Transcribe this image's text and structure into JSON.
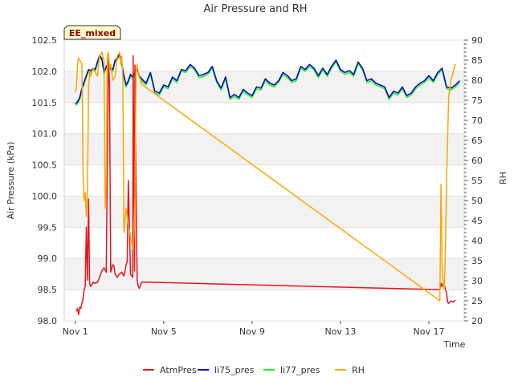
{
  "chart_data": {
    "type": "line",
    "title": "Air Pressure and RH",
    "xlabel": "Time",
    "ylabel_left": "Air Pressure (kPa)",
    "ylabel_right": "RH",
    "badge": "EE_mixed",
    "xlim": [
      0.5,
      18.6
    ],
    "ylim_left": [
      98.0,
      102.5
    ],
    "ylim_right": [
      20,
      90
    ],
    "x_ticks": [
      {
        "value": 1,
        "label": "Nov 1"
      },
      {
        "value": 5,
        "label": "Nov 5"
      },
      {
        "value": 9,
        "label": "Nov 9"
      },
      {
        "value": 13,
        "label": "Nov 13"
      },
      {
        "value": 17,
        "label": "Nov 17"
      }
    ],
    "y_left_ticks": [
      "98.0",
      "98.5",
      "99.0",
      "99.5",
      "100.0",
      "100.5",
      "101.0",
      "101.5",
      "102.0",
      "102.5"
    ],
    "y_right_ticks": [
      "20",
      "25",
      "30",
      "35",
      "40",
      "45",
      "50",
      "55",
      "60",
      "65",
      "70",
      "75",
      "80",
      "85",
      "90"
    ],
    "bands_left": [
      [
        98.5,
        99.0
      ],
      [
        99.5,
        100.0
      ],
      [
        100.5,
        101.0
      ],
      [
        101.5,
        102.0
      ]
    ],
    "legend": [
      {
        "name": "AtmPres",
        "color": "#e8161b"
      },
      {
        "name": "li75_pres",
        "color": "#0000cc"
      },
      {
        "name": "li77_pres",
        "color": "#22ee22"
      },
      {
        "name": "RH",
        "color": "#ffa500"
      }
    ],
    "series": [
      {
        "name": "li77_pres",
        "color": "#22ee22",
        "axis": "left",
        "x": [
          1.0,
          1.1,
          1.2,
          1.3,
          1.4,
          1.5,
          1.6,
          1.7,
          1.8,
          1.9,
          2.0,
          2.1,
          2.2,
          2.3,
          2.4,
          2.5,
          2.6,
          2.7,
          2.8,
          2.9,
          3.0,
          3.1,
          3.2,
          3.3,
          3.4,
          3.5,
          3.6,
          3.7,
          3.8,
          3.9,
          4.0,
          4.2,
          4.4,
          4.6,
          4.8,
          5.0,
          5.2,
          5.4,
          5.6,
          5.8,
          6.0,
          6.2,
          6.4,
          6.6,
          6.8,
          7.0,
          7.2,
          7.4,
          7.6,
          7.8,
          8.0,
          8.2,
          8.4,
          8.6,
          8.8,
          9.0,
          9.2,
          9.4,
          9.6,
          9.8,
          10.0,
          10.2,
          10.4,
          10.6,
          10.8,
          11.0,
          11.2,
          11.4,
          11.6,
          11.8,
          12.0,
          12.2,
          12.4,
          12.6,
          12.8,
          13.0,
          13.2,
          13.4,
          13.6,
          13.8,
          14.0,
          14.2,
          14.4,
          14.6,
          14.8,
          15.0,
          15.2,
          15.4,
          15.6,
          15.8,
          16.0,
          16.2,
          16.4,
          16.6,
          16.8,
          17.0,
          17.2,
          17.4,
          17.6,
          17.8,
          18.0,
          18.2,
          18.4
        ],
        "y": [
          101.45,
          101.48,
          101.55,
          101.7,
          101.8,
          101.9,
          102.0,
          101.98,
          102.02,
          102.0,
          102.12,
          102.22,
          102.18,
          101.95,
          102.05,
          102.1,
          102.02,
          102.0,
          102.15,
          102.18,
          102.25,
          102.1,
          101.9,
          101.75,
          101.82,
          101.92,
          101.88,
          101.95,
          102.02,
          101.9,
          101.85,
          101.78,
          101.95,
          101.65,
          101.62,
          101.75,
          101.72,
          101.88,
          101.82,
          102.0,
          101.98,
          102.08,
          102.02,
          101.9,
          101.92,
          101.95,
          102.05,
          101.82,
          101.7,
          101.88,
          101.55,
          101.6,
          101.55,
          101.68,
          101.62,
          101.58,
          101.72,
          101.7,
          101.85,
          101.78,
          101.75,
          101.82,
          101.95,
          101.9,
          101.82,
          101.85,
          102.05,
          102.0,
          102.08,
          102.02,
          101.9,
          102.02,
          101.92,
          102.05,
          102.15,
          102.0,
          101.95,
          101.98,
          101.92,
          102.12,
          102.02,
          101.82,
          101.85,
          101.78,
          101.75,
          101.72,
          101.55,
          101.65,
          101.62,
          101.72,
          101.58,
          101.62,
          101.72,
          101.78,
          101.82,
          101.9,
          101.82,
          101.95,
          102.02,
          101.72,
          101.7,
          101.75,
          101.82
        ]
      },
      {
        "name": "li75_pres",
        "color": "#0000cc",
        "axis": "left",
        "x": [
          1.0,
          1.1,
          1.2,
          1.3,
          1.4,
          1.5,
          1.6,
          1.7,
          1.8,
          1.9,
          2.0,
          2.1,
          2.2,
          2.3,
          2.4,
          2.5,
          2.6,
          2.7,
          2.8,
          2.9,
          3.0,
          3.1,
          3.2,
          3.3,
          3.4,
          3.5,
          3.6,
          3.7,
          3.8,
          3.9,
          4.0,
          4.2,
          4.4,
          4.6,
          4.8,
          5.0,
          5.2,
          5.4,
          5.6,
          5.8,
          6.0,
          6.2,
          6.4,
          6.6,
          6.8,
          7.0,
          7.2,
          7.4,
          7.6,
          7.8,
          8.0,
          8.2,
          8.4,
          8.6,
          8.8,
          9.0,
          9.2,
          9.4,
          9.6,
          9.8,
          10.0,
          10.2,
          10.4,
          10.6,
          10.8,
          11.0,
          11.2,
          11.4,
          11.6,
          11.8,
          12.0,
          12.2,
          12.4,
          12.6,
          12.8,
          13.0,
          13.2,
          13.4,
          13.6,
          13.8,
          14.0,
          14.2,
          14.4,
          14.6,
          14.8,
          15.0,
          15.2,
          15.4,
          15.6,
          15.8,
          16.0,
          16.2,
          16.4,
          16.6,
          16.8,
          17.0,
          17.2,
          17.4,
          17.6,
          17.8,
          18.0,
          18.2,
          18.4
        ],
        "y": [
          101.48,
          101.51,
          101.58,
          101.73,
          101.83,
          101.93,
          102.03,
          102.01,
          102.05,
          102.03,
          102.15,
          102.25,
          102.21,
          101.98,
          102.08,
          102.13,
          102.05,
          102.03,
          102.18,
          102.21,
          102.28,
          102.13,
          101.93,
          101.78,
          101.85,
          101.95,
          101.91,
          101.98,
          102.05,
          101.93,
          101.88,
          101.81,
          101.98,
          101.68,
          101.65,
          101.78,
          101.75,
          101.91,
          101.85,
          102.03,
          102.01,
          102.11,
          102.05,
          101.93,
          101.95,
          101.98,
          102.08,
          101.85,
          101.73,
          101.91,
          101.58,
          101.63,
          101.58,
          101.71,
          101.65,
          101.61,
          101.75,
          101.73,
          101.88,
          101.81,
          101.78,
          101.85,
          101.98,
          101.93,
          101.85,
          101.88,
          102.08,
          102.03,
          102.11,
          102.05,
          101.93,
          102.05,
          101.95,
          102.08,
          102.18,
          102.03,
          101.98,
          102.01,
          101.95,
          102.15,
          102.05,
          101.85,
          101.88,
          101.81,
          101.78,
          101.75,
          101.58,
          101.68,
          101.65,
          101.75,
          101.61,
          101.65,
          101.75,
          101.81,
          101.85,
          101.93,
          101.85,
          101.98,
          102.05,
          101.75,
          101.73,
          101.78,
          101.85
        ]
      },
      {
        "name": "AtmPres",
        "color": "#e8161b",
        "axis": "left",
        "x": [
          1.05,
          1.1,
          1.15,
          1.2,
          1.25,
          1.3,
          1.35,
          1.4,
          1.45,
          1.5,
          1.55,
          1.6,
          1.65,
          1.7,
          1.75,
          1.8,
          1.9,
          2.0,
          2.1,
          2.2,
          2.3,
          2.4,
          2.5,
          2.55,
          2.6,
          2.65,
          2.7,
          2.75,
          2.8,
          2.85,
          2.9,
          3.0,
          3.1,
          3.2,
          3.25,
          3.3,
          3.35,
          3.4,
          3.5,
          3.6,
          3.62,
          3.68,
          3.7,
          3.75,
          3.8,
          3.85,
          3.9,
          4.0,
          4.2,
          17.5,
          17.55,
          17.6,
          17.65,
          17.7,
          17.75,
          17.8,
          17.85,
          17.9,
          18.0,
          18.1,
          18.2
        ],
        "y": [
          98.15,
          98.2,
          98.1,
          98.22,
          98.2,
          98.28,
          98.35,
          98.5,
          98.55,
          99.5,
          98.65,
          99.95,
          98.6,
          98.55,
          98.58,
          98.62,
          98.6,
          98.62,
          98.7,
          98.8,
          98.85,
          98.78,
          102.2,
          101.8,
          98.78,
          98.85,
          98.9,
          98.88,
          98.75,
          98.72,
          98.7,
          98.75,
          98.78,
          98.72,
          98.8,
          98.9,
          98.95,
          100.25,
          98.75,
          98.7,
          102.25,
          98.8,
          102.1,
          100.0,
          98.65,
          98.55,
          98.52,
          98.62,
          98.62,
          98.5,
          98.6,
          98.55,
          98.62,
          98.58,
          98.5,
          98.45,
          98.3,
          98.28,
          98.32,
          98.3,
          98.33
        ],
        "segments_break_after": []
      },
      {
        "name": "RH",
        "color": "#ffa500",
        "axis": "right",
        "x": [
          1.0,
          1.05,
          1.1,
          1.15,
          1.2,
          1.3,
          1.35,
          1.4,
          1.45,
          1.5,
          1.55,
          1.6,
          1.65,
          1.7,
          1.8,
          1.9,
          2.0,
          2.1,
          2.2,
          2.3,
          2.35,
          2.4,
          2.45,
          2.5,
          2.55,
          2.6,
          2.65,
          2.7,
          2.8,
          2.9,
          3.0,
          3.05,
          3.1,
          3.15,
          3.2,
          3.3,
          3.4,
          3.5,
          3.6,
          3.65,
          3.7,
          3.75,
          3.8,
          3.85,
          4.0,
          17.5,
          17.55,
          17.6,
          17.65,
          17.7,
          17.75,
          17.8,
          17.9,
          18.0,
          18.1,
          18.2
        ],
        "y": [
          77,
          78,
          84,
          85.5,
          85,
          84,
          57,
          50,
          52,
          46,
          53,
          78,
          82,
          81,
          83,
          82,
          81,
          86,
          87,
          85,
          48,
          55,
          86,
          87,
          83,
          84,
          82,
          80,
          81,
          86,
          87,
          84,
          86,
          81,
          42,
          48,
          44,
          41,
          38,
          41,
          50,
          82,
          84,
          82,
          79,
          25,
          54,
          33,
          29,
          28,
          38,
          55,
          76,
          80,
          82,
          84
        ],
        "segments_break_after": []
      }
    ]
  }
}
